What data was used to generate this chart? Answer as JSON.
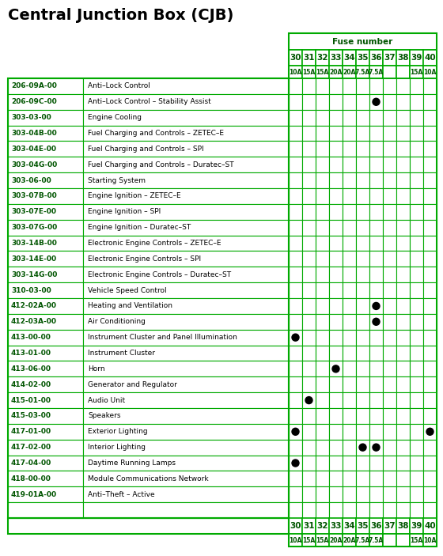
{
  "title": "Central Junction Box (CJB)",
  "fuse_header": "Fuse number",
  "fuse_numbers": [
    "30",
    "31",
    "32",
    "33",
    "34",
    "35",
    "36",
    "37",
    "38",
    "39",
    "40"
  ],
  "fuse_amps": [
    "10A",
    "15A",
    "15A",
    "20A",
    "20A",
    "7.5A",
    "7.5A",
    "",
    "",
    "15A",
    "10A"
  ],
  "rows": [
    {
      "code": "206-09A-00",
      "desc": "Anti–Lock Control",
      "dots": []
    },
    {
      "code": "206-09C-00",
      "desc": "Anti–Lock Control – Stability Assist",
      "dots": [
        6
      ]
    },
    {
      "code": "303-03-00",
      "desc": "Engine Cooling",
      "dots": []
    },
    {
      "code": "303-04B-00",
      "desc": "Fuel Charging and Controls – ZETEC–E",
      "dots": []
    },
    {
      "code": "303-04E-00",
      "desc": "Fuel Charging and Controls – SPI",
      "dots": []
    },
    {
      "code": "303-04G-00",
      "desc": "Fuel Charging and Controls – Duratec–ST",
      "dots": []
    },
    {
      "code": "303-06-00",
      "desc": "Starting System",
      "dots": []
    },
    {
      "code": "303-07B-00",
      "desc": "Engine Ignition – ZETEC–E",
      "dots": []
    },
    {
      "code": "303-07E-00",
      "desc": "Engine Ignition – SPI",
      "dots": []
    },
    {
      "code": "303-07G-00",
      "desc": "Engine Ignition – Duratec–ST",
      "dots": []
    },
    {
      "code": "303-14B-00",
      "desc": "Electronic Engine Controls – ZETEC–E",
      "dots": []
    },
    {
      "code": "303-14E-00",
      "desc": "Electronic Engine Controls – SPI",
      "dots": []
    },
    {
      "code": "303-14G-00",
      "desc": "Electronic Engine Controls – Duratec–ST",
      "dots": []
    },
    {
      "code": "310-03-00",
      "desc": "Vehicle Speed Control",
      "dots": []
    },
    {
      "code": "412-02A-00",
      "desc": "Heating and Ventilation",
      "dots": [
        6
      ]
    },
    {
      "code": "412-03A-00",
      "desc": "Air Conditioning",
      "dots": [
        6
      ]
    },
    {
      "code": "413-00-00",
      "desc": "Instrument Cluster and Panel Illumination",
      "dots": [
        0
      ]
    },
    {
      "code": "413-01-00",
      "desc": "Instrument Cluster",
      "dots": []
    },
    {
      "code": "413-06-00",
      "desc": "Horn",
      "dots": [
        3
      ]
    },
    {
      "code": "414-02-00",
      "desc": "Generator and Regulator",
      "dots": []
    },
    {
      "code": "415-01-00",
      "desc": "Audio Unit",
      "dots": [
        1
      ]
    },
    {
      "code": "415-03-00",
      "desc": "Speakers",
      "dots": []
    },
    {
      "code": "417-01-00",
      "desc": "Exterior Lighting",
      "dots": [
        0,
        10
      ]
    },
    {
      "code": "417-02-00",
      "desc": "Interior Lighting",
      "dots": [
        5,
        6
      ]
    },
    {
      "code": "417-04-00",
      "desc": "Daytime Running Lamps",
      "dots": [
        0
      ]
    },
    {
      "code": "418-00-00",
      "desc": "Module Communications Network",
      "dots": []
    },
    {
      "code": "419-01A-00",
      "desc": "Anti–Theft – Active",
      "dots": []
    },
    {
      "code": "",
      "desc": "",
      "dots": []
    }
  ],
  "bg_color": "#ffffff",
  "grid_color": "#00aa00",
  "text_color": "#000000",
  "green_text": "#005500",
  "dot_color": "#000000",
  "title_color": "#000000",
  "title_fontsize": 14,
  "code_fontsize": 6.5,
  "desc_fontsize": 6.5,
  "header_num_fontsize": 7.5,
  "header_amp_fontsize": 5.5,
  "fuse_label_fontsize": 7.5
}
